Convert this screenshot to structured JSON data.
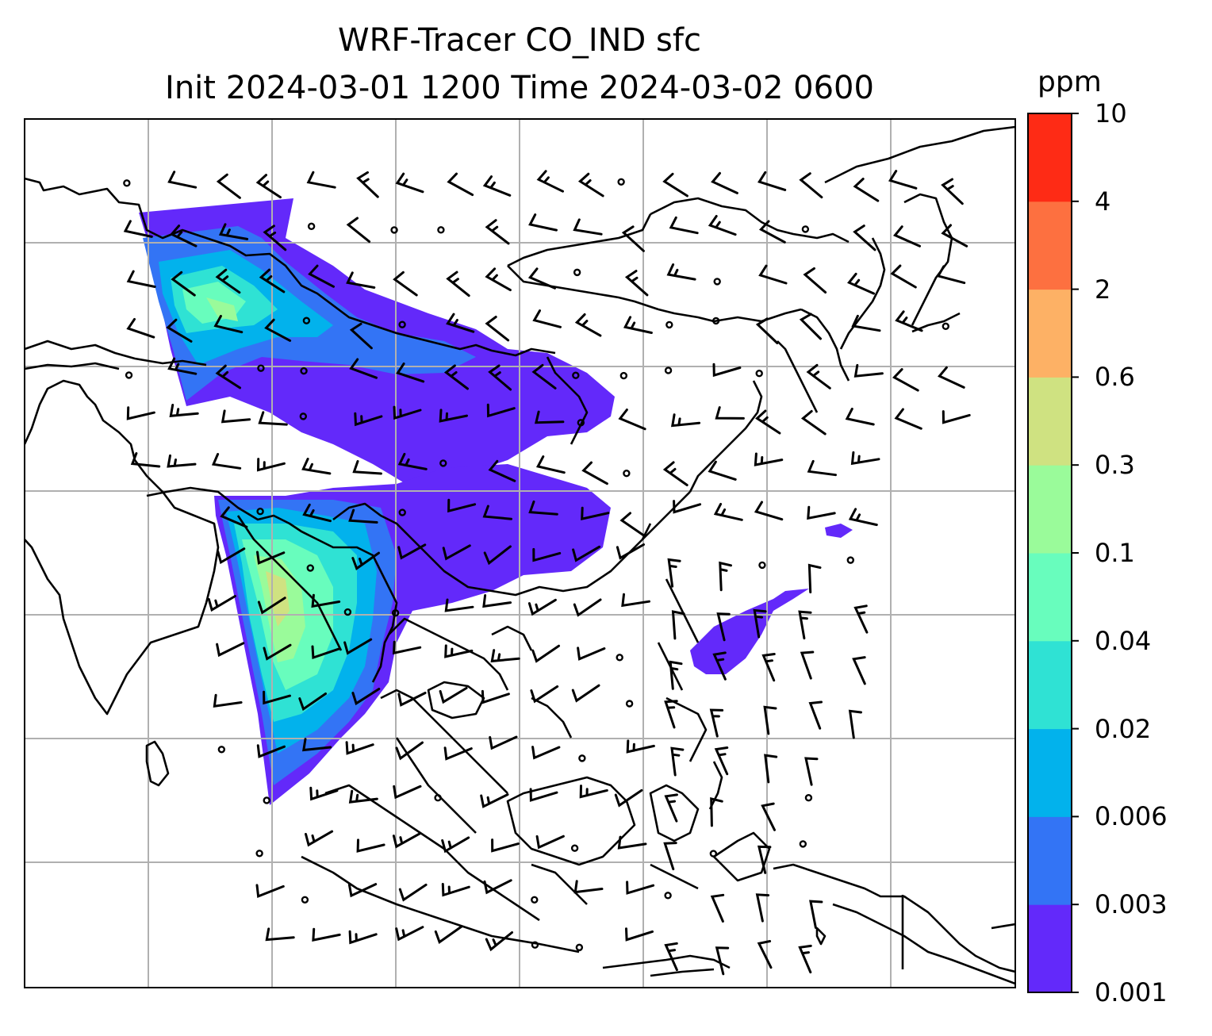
{
  "title_line1": "WRF-Tracer CO_IND sfc",
  "title_line2": "Init 2024-03-01 1200 Time 2024-03-02 0600",
  "colorbar": {
    "unit": "ppm",
    "levels": [
      "0.001",
      "0.003",
      "0.006",
      "0.02",
      "0.04",
      "0.1",
      "0.3",
      "0.6",
      "2",
      "4",
      "10"
    ],
    "colors": [
      "#6329fa",
      "#3374f5",
      "#02b2ec",
      "#2fe2d4",
      "#68fdbd",
      "#9afb9a",
      "#cfe281",
      "#fdb165",
      "#fd7040",
      "#fe2b15"
    ]
  },
  "map": {
    "background": "#ffffff",
    "coastline_color": "#000000",
    "gridline_color": "#b0b0b0",
    "wind_barb_color": "#000000"
  }
}
